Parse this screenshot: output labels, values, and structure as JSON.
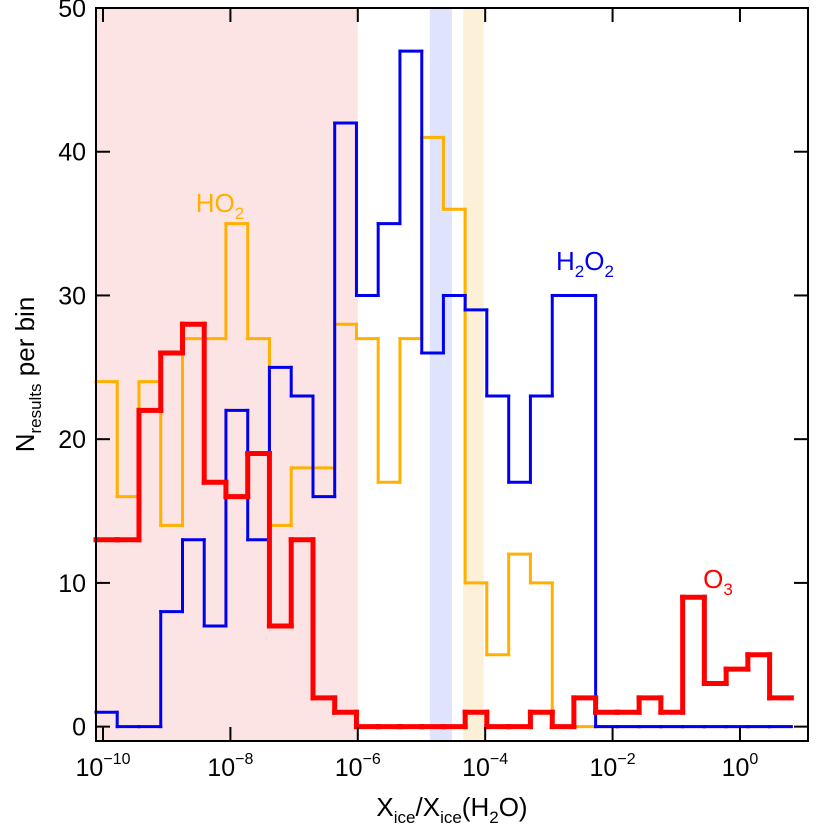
{
  "chart_data": {
    "type": "histogram",
    "log_x": true,
    "xlabel": [
      "X",
      "ice",
      "/X",
      "ice",
      "(H",
      "2",
      "O)"
    ],
    "ylabel": [
      "N",
      "results",
      " per bin"
    ],
    "xlim": [
      7.76e-11,
      11.7
    ],
    "ylim": [
      -1,
      50
    ],
    "xticks": [
      {
        "value": 1e-10,
        "label": [
          "10",
          "−10"
        ]
      },
      {
        "value": 1e-08,
        "label": [
          "10",
          "−8"
        ]
      },
      {
        "value": 1e-06,
        "label": [
          "10",
          "−6"
        ]
      },
      {
        "value": 0.0001,
        "label": [
          "10",
          "−4"
        ]
      },
      {
        "value": 0.01,
        "label": [
          "10",
          "−2"
        ]
      },
      {
        "value": 1,
        "label": [
          "10",
          "0"
        ]
      }
    ],
    "yticks": [
      0,
      10,
      20,
      30,
      40,
      50
    ],
    "shaded_regions": [
      {
        "xrange": [
          7.76e-11,
          1e-06
        ],
        "color": "#fde4e4"
      },
      {
        "xrange": [
          1.35e-05,
          3e-05
        ],
        "color": "#dfe3fb"
      },
      {
        "xrange": [
          4.5e-05,
          9.5e-05
        ],
        "color": "#fdf0d8"
      }
    ],
    "bins": [
      7.62e-11,
      1.67e-10,
      3.67e-10,
      8.06e-10,
      1.77e-09,
      3.88e-09,
      8.51e-09,
      1.87e-08,
      4.1e-08,
      9.01e-08,
      1.98e-07,
      4.34e-07,
      9.53e-07,
      2.09e-06,
      4.59e-06,
      1.01e-05,
      2.21e-05,
      4.85e-05,
      0.000106,
      0.000234,
      0.000513,
      0.00113,
      0.00247,
      0.00542,
      0.0119,
      0.0261,
      0.0573,
      0.126,
      0.276,
      0.607,
      1.33,
      2.92,
      6.41
    ],
    "series": [
      {
        "name": [
          "HO",
          "2"
        ],
        "color": "#ffb000",
        "width": 3,
        "values": [
          24,
          16,
          24,
          14,
          27,
          27,
          35,
          27,
          14,
          18,
          18,
          28,
          27,
          17,
          27,
          41,
          36,
          10,
          5,
          12,
          10,
          0,
          0,
          0,
          0,
          0,
          0,
          0,
          0,
          0,
          0,
          0
        ]
      },
      {
        "name": [
          "H",
          "2",
          "O",
          "2"
        ],
        "color": "#0000ee",
        "width": 3,
        "values": [
          1,
          0,
          0,
          8,
          13,
          7,
          22,
          13,
          25,
          23,
          16,
          42,
          30,
          35,
          47,
          26,
          30,
          29,
          23,
          17,
          23,
          30,
          30,
          0,
          0,
          0,
          0,
          0,
          0,
          0,
          0,
          0
        ]
      },
      {
        "name": [
          "O",
          "3"
        ],
        "color": "#ff0000",
        "width": 5,
        "values": [
          13,
          13,
          22,
          26,
          28,
          17,
          16,
          19,
          7,
          13,
          2,
          1,
          0,
          0,
          0,
          0,
          0,
          1,
          0,
          0,
          1,
          0,
          2,
          1,
          1,
          2,
          1,
          9,
          3,
          4,
          5,
          2
        ]
      }
    ]
  }
}
